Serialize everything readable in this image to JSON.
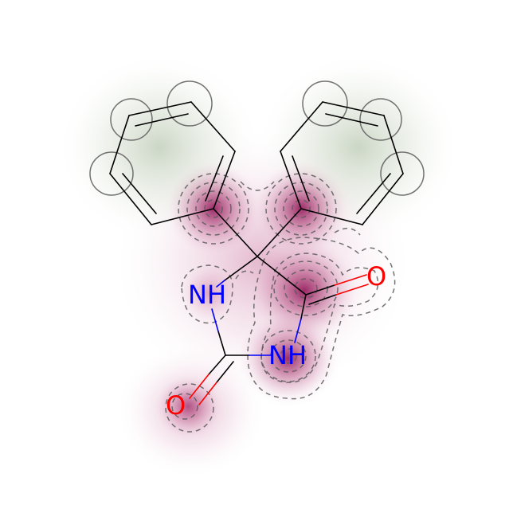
{
  "molecule": {
    "atoms": {
      "n1_label": "NH",
      "n3_label": "NH",
      "o_carbonyl_right_label": "O",
      "o_carbonyl_bottom_label": "O"
    }
  },
  "colors": {
    "background": "#ffffff",
    "bond": "#000000",
    "nitrogen": "#0000ff",
    "oxygen": "#ff0000",
    "negative_density": "#8b0a50",
    "positive_density": "#4a7a3a",
    "contour_line": "#5a5a5a"
  }
}
